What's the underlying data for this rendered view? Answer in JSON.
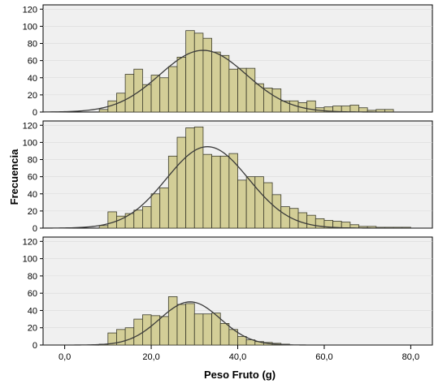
{
  "chart_data": {
    "type": "bar",
    "xlabel": "Peso Fruto (g)",
    "ylabel": "Frecuencia",
    "xlim": [
      -5,
      85
    ],
    "xticks": [
      0,
      20,
      40,
      60,
      80
    ],
    "xtick_labels": [
      "0,0",
      "20,0",
      "40,0",
      "60,0",
      "80,0"
    ],
    "ylim": [
      0,
      125
    ],
    "yticks": [
      0,
      20,
      40,
      60,
      80,
      100,
      120
    ],
    "bin_width": 2,
    "bin_start": 8,
    "grid": "horizontal",
    "colors": {
      "bar": "#d3ce97",
      "bar_edge": "#3a3a2a",
      "curve": "#3a3a3a",
      "panel": "#f0f0f0"
    },
    "panels": [
      {
        "values": [
          3,
          13,
          22,
          44,
          50,
          32,
          43,
          40,
          53,
          64,
          95,
          92,
          86,
          70,
          66,
          50,
          51,
          51,
          33,
          28,
          27,
          13,
          13,
          11,
          13,
          5,
          6,
          7,
          7,
          8,
          5,
          2,
          3,
          3
        ],
        "normal_curve": {
          "mean": 32,
          "sd": 10,
          "peak": 72
        }
      },
      {
        "values": [
          3,
          19,
          14,
          17,
          21,
          25,
          40,
          47,
          84,
          106,
          117,
          118,
          86,
          84,
          84,
          87,
          56,
          60,
          60,
          53,
          39,
          25,
          23,
          18,
          15,
          11,
          9,
          8,
          7,
          4,
          2,
          2,
          1,
          1,
          1,
          1
        ],
        "normal_curve": {
          "mean": 33,
          "sd": 9.5,
          "peak": 95
        }
      },
      {
        "values": [
          1,
          14,
          18,
          20,
          30,
          35,
          34,
          33,
          56,
          47,
          48,
          36,
          36,
          37,
          25,
          18,
          10,
          6,
          4,
          3,
          2,
          1
        ],
        "normal_curve": {
          "mean": 29,
          "sd": 7,
          "peak": 50
        }
      }
    ]
  }
}
